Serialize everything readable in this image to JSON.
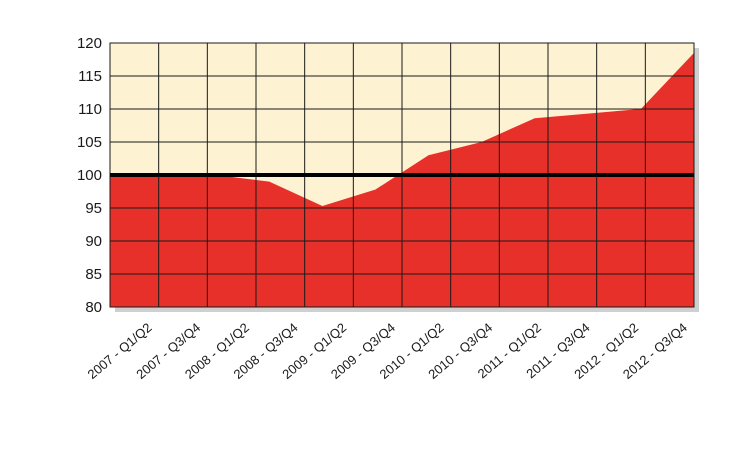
{
  "chart_data": {
    "type": "area",
    "categories": [
      "2007 - Q1/Q2",
      "2007 - Q3/Q4",
      "2008 - Q1/Q2",
      "2008 - Q3/Q4",
      "2009 - Q1/Q2",
      "2009 - Q3/Q4",
      "2010 - Q1/Q2",
      "2010 - Q3/Q4",
      "2011 - Q1/Q2",
      "2011 - Q3/Q4",
      "2012 - Q1/Q2",
      "2012 - Q3/Q4"
    ],
    "series": [
      {
        "values": [
          100,
          100,
          100,
          99,
          95.3,
          97.8,
          103,
          105,
          108.6,
          109.3,
          110,
          118.5
        ]
      }
    ],
    "reference_line": 100,
    "ylim": [
      80,
      120
    ],
    "yticks": [
      80,
      85,
      90,
      95,
      100,
      105,
      110,
      115,
      120
    ],
    "grid": true,
    "title": "",
    "xlabel": "",
    "ylabel": "",
    "colors": {
      "area": "#e8302a",
      "background": "#fdf2d2",
      "grid": "#1a1a1a",
      "reference_line": "#000000",
      "shadow": "#a8a8a8"
    }
  }
}
